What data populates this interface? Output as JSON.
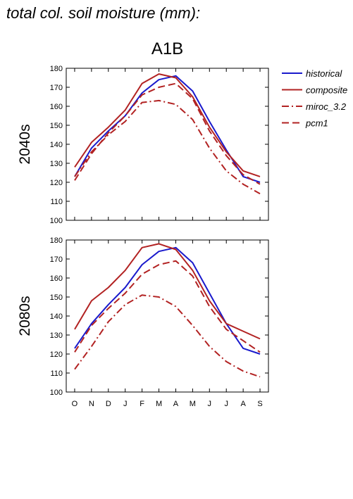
{
  "title": "total col. soil moisture (mm):",
  "scenario": "A1B",
  "colors": {
    "historical": "#1a1acc",
    "composite": "#b22222",
    "miroc_3.2": "#b22222",
    "pcm1": "#b22222"
  },
  "legend": [
    {
      "name": "historical",
      "dash": "solid",
      "color": "#1a1acc"
    },
    {
      "name": "composite",
      "dash": "solid",
      "color": "#b22222"
    },
    {
      "name": "miroc_3.2",
      "dash": "dashdot",
      "color": "#b22222"
    },
    {
      "name": "pcm1",
      "dash": "dash",
      "color": "#b22222"
    }
  ],
  "chart_data": [
    {
      "type": "line",
      "title": "2040s",
      "categories": [
        "O",
        "N",
        "D",
        "J",
        "F",
        "M",
        "A",
        "M",
        "J",
        "J",
        "A",
        "S"
      ],
      "ylim": [
        100,
        180
      ],
      "yticks": [
        100,
        110,
        120,
        130,
        140,
        150,
        160,
        170,
        180
      ],
      "series": [
        {
          "name": "historical",
          "values": [
            123,
            138,
            147,
            155,
            167,
            174,
            176,
            168,
            152,
            137,
            123,
            120
          ]
        },
        {
          "name": "composite",
          "values": [
            128,
            141,
            149,
            158,
            172,
            177,
            175,
            165,
            149,
            136,
            126,
            123
          ]
        },
        {
          "name": "miroc_3.2",
          "values": [
            123,
            136,
            145,
            152,
            162,
            163,
            161,
            153,
            138,
            126,
            119,
            114
          ]
        },
        {
          "name": "pcm1",
          "values": [
            121,
            135,
            146,
            155,
            166,
            170,
            172,
            164,
            147,
            134,
            124,
            119
          ]
        }
      ]
    },
    {
      "type": "line",
      "title": "2080s",
      "categories": [
        "O",
        "N",
        "D",
        "J",
        "F",
        "M",
        "A",
        "M",
        "J",
        "J",
        "A",
        "S"
      ],
      "ylim": [
        100,
        180
      ],
      "yticks": [
        100,
        110,
        120,
        130,
        140,
        150,
        160,
        170,
        180
      ],
      "series": [
        {
          "name": "historical",
          "values": [
            123,
            136,
            146,
            155,
            167,
            174,
            176,
            168,
            152,
            136,
            123,
            120
          ]
        },
        {
          "name": "composite",
          "values": [
            133,
            148,
            155,
            164,
            176,
            178,
            175,
            164,
            148,
            136,
            132,
            128
          ]
        },
        {
          "name": "miroc_3.2",
          "values": [
            112,
            124,
            137,
            146,
            151,
            150,
            145,
            135,
            124,
            116,
            111,
            108
          ]
        },
        {
          "name": "pcm1",
          "values": [
            121,
            135,
            144,
            152,
            162,
            167,
            169,
            161,
            145,
            133,
            127,
            121
          ]
        }
      ]
    }
  ]
}
